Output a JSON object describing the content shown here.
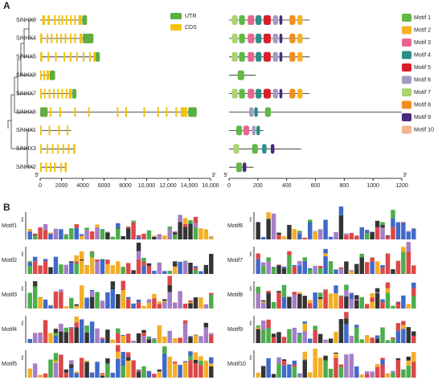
{
  "panel_a": {
    "label": "A",
    "gene_legend": [
      {
        "name": "UTR",
        "color": "#5fad41"
      },
      {
        "name": "CDS",
        "color": "#f4c20d"
      }
    ],
    "gene_axis": {
      "start_label": "5'",
      "end_label": "3'",
      "lim": [
        0,
        16000
      ],
      "ticks": [
        0,
        2000,
        4000,
        6000,
        8000,
        {
          "value": 10000,
          "label": "10,000"
        },
        {
          "value": 12000,
          "label": "12,000"
        },
        {
          "value": 14000,
          "label": "14,000"
        },
        {
          "value": 16000,
          "label": "16,000"
        }
      ]
    },
    "motif_axis": {
      "start_label": "5'",
      "end_label": "3'",
      "lim": [
        0,
        1200
      ],
      "ticks": [
        0,
        200,
        400,
        600,
        800,
        1000,
        1200
      ]
    },
    "motif_legend": [
      {
        "name": "Motif 1",
        "color": "#62b846"
      },
      {
        "name": "Motif 2",
        "color": "#f5b324"
      },
      {
        "name": "Motif 3",
        "color": "#e6668e"
      },
      {
        "name": "Motif 4",
        "color": "#2a8f86"
      },
      {
        "name": "Motif 5",
        "color": "#d8202a"
      },
      {
        "name": "Motif 6",
        "color": "#a39bc0"
      },
      {
        "name": "Motif 7",
        "color": "#a9d46f"
      },
      {
        "name": "Motif 8",
        "color": "#f08f1e"
      },
      {
        "name": "Motif 9",
        "color": "#4a2a7f"
      },
      {
        "name": "Motif 10",
        "color": "#f2b48c"
      }
    ],
    "genes": [
      {
        "name": "SiNHX9",
        "length": 4400,
        "utr": [
          [
            3950,
            4400
          ]
        ],
        "cds": [
          [
            200,
            450
          ],
          [
            700,
            900
          ],
          [
            1300,
            1450
          ],
          [
            1700,
            1850
          ],
          [
            2000,
            2150
          ],
          [
            2400,
            2550
          ],
          [
            2800,
            2950
          ],
          [
            3200,
            3350
          ],
          [
            3600,
            3900
          ]
        ],
        "protein_length": 560,
        "motifs": [
          [
            6,
            20,
            60
          ],
          [
            0,
            70,
            110
          ],
          [
            2,
            130,
            175
          ],
          [
            3,
            185,
            225
          ],
          [
            4,
            240,
            290
          ],
          [
            5,
            305,
            340
          ],
          [
            8,
            350,
            370
          ],
          [
            7,
            420,
            460
          ],
          [
            1,
            475,
            510
          ]
        ]
      },
      {
        "name": "SiNHX4",
        "length": 5000,
        "utr": [
          [
            4000,
            5000
          ]
        ],
        "cds": [
          [
            0,
            200
          ],
          [
            600,
            750
          ],
          [
            1000,
            1150
          ],
          [
            1500,
            1650
          ],
          [
            1900,
            2050
          ],
          [
            2300,
            2450
          ],
          [
            2800,
            2950
          ],
          [
            3200,
            3350
          ],
          [
            3700,
            3950
          ]
        ],
        "protein_length": 560,
        "motifs": [
          [
            6,
            20,
            60
          ],
          [
            0,
            70,
            110
          ],
          [
            2,
            130,
            175
          ],
          [
            3,
            185,
            225
          ],
          [
            4,
            240,
            290
          ],
          [
            5,
            305,
            340
          ],
          [
            8,
            350,
            370
          ],
          [
            7,
            420,
            460
          ],
          [
            1,
            475,
            510
          ]
        ]
      },
      {
        "name": "SiNHX5",
        "length": 5600,
        "utr": [
          [
            5200,
            5600
          ]
        ],
        "cds": [
          [
            0,
            200
          ],
          [
            700,
            850
          ],
          [
            1400,
            1550
          ],
          [
            2200,
            2350
          ],
          [
            2800,
            2950
          ],
          [
            3400,
            3550
          ],
          [
            4000,
            4150
          ],
          [
            4600,
            4750
          ],
          [
            5000,
            5200
          ]
        ],
        "protein_length": 560,
        "motifs": [
          [
            6,
            20,
            60
          ],
          [
            0,
            70,
            110
          ],
          [
            2,
            130,
            175
          ],
          [
            3,
            185,
            225
          ],
          [
            4,
            240,
            290
          ],
          [
            5,
            305,
            340
          ],
          [
            8,
            350,
            370
          ],
          [
            7,
            420,
            460
          ],
          [
            1,
            475,
            510
          ]
        ]
      },
      {
        "name": "SiNHX8",
        "length": 1400,
        "utr": [
          [
            900,
            1400
          ]
        ],
        "cds": [
          [
            0,
            150
          ],
          [
            300,
            450
          ],
          [
            600,
            850
          ]
        ],
        "protein_length": 185,
        "motifs": [
          [
            0,
            60,
            105
          ]
        ]
      },
      {
        "name": "SiNHX7",
        "length": 3400,
        "utr": [
          [
            3000,
            3400
          ]
        ],
        "cds": [
          [
            0,
            150
          ],
          [
            350,
            500
          ],
          [
            800,
            950
          ],
          [
            1200,
            1350
          ],
          [
            1600,
            1750
          ],
          [
            2000,
            2150
          ],
          [
            2400,
            2550
          ],
          [
            2700,
            2950
          ]
        ],
        "protein_length": 560,
        "motifs": [
          [
            6,
            20,
            60
          ],
          [
            0,
            70,
            110
          ],
          [
            2,
            130,
            175
          ],
          [
            3,
            185,
            225
          ],
          [
            4,
            240,
            290
          ],
          [
            5,
            305,
            340
          ],
          [
            8,
            350,
            370
          ],
          [
            7,
            420,
            460
          ],
          [
            1,
            475,
            510
          ]
        ]
      },
      {
        "name": "SiNHX6",
        "length": 14700,
        "utr": [
          [
            0,
            700
          ],
          [
            13900,
            14700
          ]
        ],
        "cds": [
          [
            900,
            1050
          ],
          [
            1800,
            1950
          ],
          [
            3200,
            3350
          ],
          [
            4500,
            4650
          ],
          [
            7200,
            7350
          ],
          [
            8000,
            8150
          ],
          [
            9700,
            9850
          ],
          [
            11000,
            11150
          ],
          [
            11800,
            11950
          ],
          [
            12700,
            12850
          ],
          [
            13200,
            13800
          ]
        ],
        "protein_length": 1200,
        "motifs": [
          [
            5,
            140,
            170
          ],
          [
            3,
            175,
            200
          ],
          [
            0,
            250,
            290
          ]
        ]
      },
      {
        "name": "SiNHX1",
        "length": 2900,
        "cds": [
          [
            0,
            150
          ],
          [
            800,
            950
          ],
          [
            1700,
            1850
          ],
          [
            2500,
            2650
          ]
        ],
        "protein_length": 240,
        "motifs": [
          [
            0,
            50,
            90
          ],
          [
            2,
            100,
            140
          ],
          [
            5,
            160,
            185
          ],
          [
            3,
            190,
            215
          ]
        ]
      },
      {
        "name": "SiNHX3",
        "length": 3300,
        "cds": [
          [
            0,
            150
          ],
          [
            600,
            750
          ],
          [
            1100,
            1250
          ],
          [
            1600,
            1750
          ],
          [
            2100,
            2250
          ],
          [
            2600,
            2750
          ],
          [
            3100,
            3300
          ]
        ],
        "protein_length": 500,
        "motifs": [
          [
            6,
            30,
            70
          ],
          [
            0,
            160,
            200
          ],
          [
            3,
            230,
            260
          ],
          [
            8,
            290,
            315
          ]
        ]
      },
      {
        "name": "SiNHX2",
        "length": 2500,
        "cds": [
          [
            0,
            150
          ],
          [
            500,
            650
          ],
          [
            900,
            1050
          ],
          [
            1300,
            1450
          ],
          [
            1900,
            2050
          ],
          [
            2300,
            2500
          ]
        ],
        "protein_length": 170,
        "motifs": [
          [
            0,
            50,
            90
          ],
          [
            8,
            95,
            120
          ]
        ]
      }
    ]
  },
  "panel_b": {
    "label": "B",
    "axis_label": "bits",
    "logos": [
      "Motif1",
      "Motif2",
      "Motif3",
      "Motif4",
      "Motif5",
      "Motif6",
      "Motif7",
      "Motif8",
      "Motif9",
      "Motif10"
    ]
  }
}
